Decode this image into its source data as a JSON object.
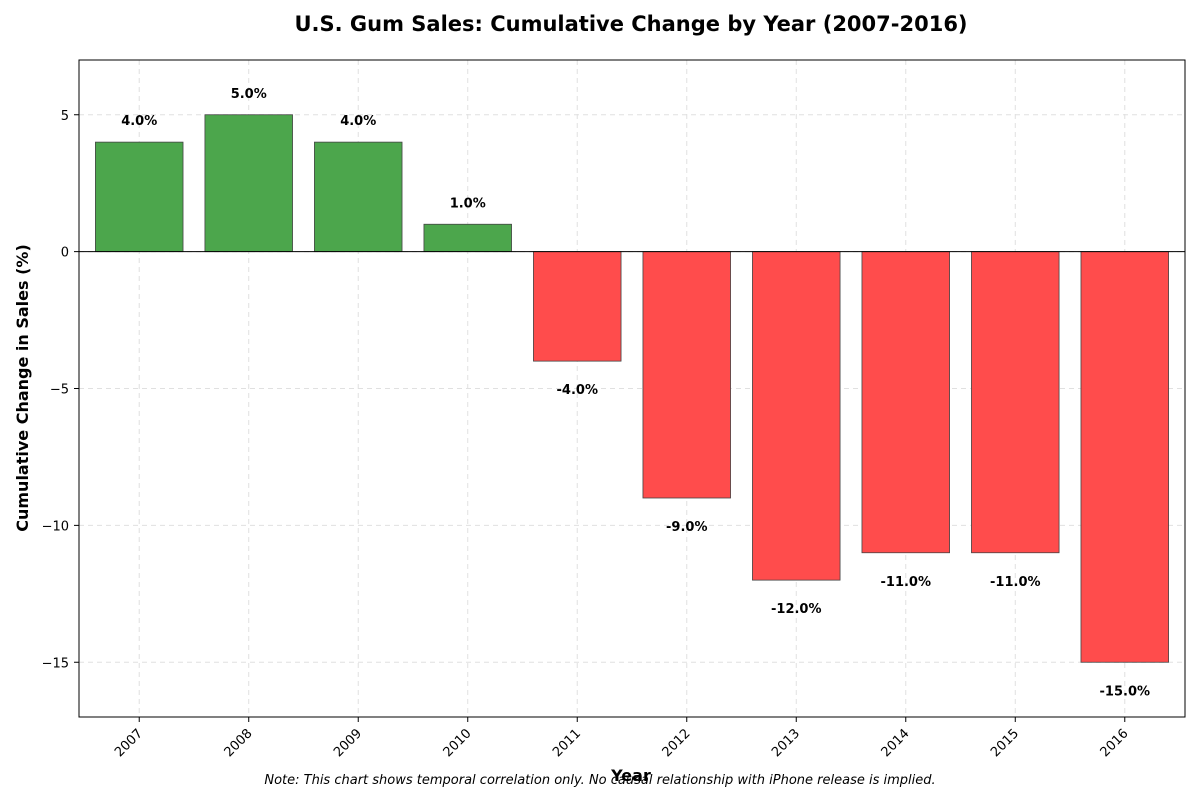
{
  "chart_data": {
    "type": "bar",
    "title": "U.S. Gum Sales: Cumulative Change by Year (2007-2016)",
    "xlabel": "Year",
    "ylabel": "Cumulative Change in Sales (%)",
    "categories": [
      "2007",
      "2008",
      "2009",
      "2010",
      "2011",
      "2012",
      "2013",
      "2014",
      "2015",
      "2016"
    ],
    "values": [
      4,
      5,
      4,
      1,
      -4,
      -9,
      -12,
      -11,
      -11,
      -15
    ],
    "data_labels": [
      "4.0%",
      "5.0%",
      "4.0%",
      "1.0%",
      "-4.0%",
      "-9.0%",
      "-12.0%",
      "-11.0%",
      "-11.0%",
      "-15.0%"
    ],
    "ylim": [
      -17,
      7
    ],
    "yticks": [
      5,
      0,
      -5,
      -10,
      -15
    ],
    "ytick_labels": [
      "5",
      "0",
      "−5",
      "−10",
      "−15"
    ],
    "grid": true,
    "colors": {
      "positive": "#4ca64c",
      "negative": "#ff4c4c",
      "edge": "#444444",
      "grid": "#e0e0e0"
    },
    "note": "Note: This chart shows temporal correlation only. No causal relationship with iPhone release is implied."
  }
}
